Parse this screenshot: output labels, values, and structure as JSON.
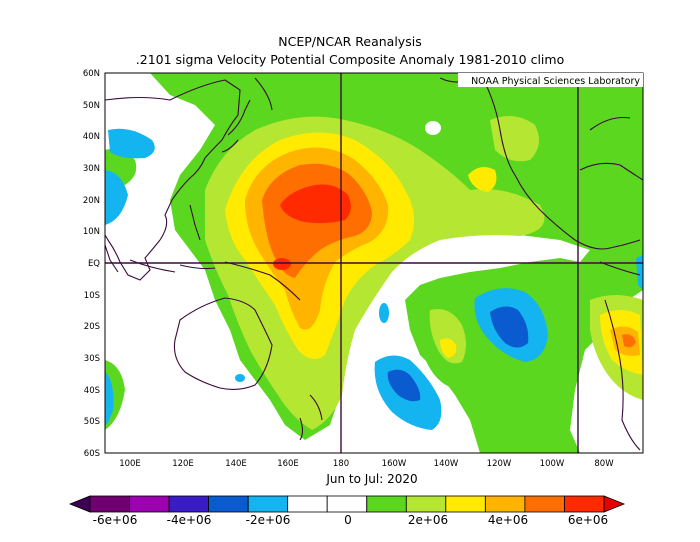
{
  "header": {
    "title": "NCEP/NCAR Reanalysis",
    "subtitle": ".2101 sigma Velocity Potential  Composite Anomaly 1981-2010 climo"
  },
  "credit": "NOAA Physical Sciences Laboratory",
  "period": "Jun to Jul: 2020",
  "lat_labels": [
    "60N",
    "50N",
    "40N",
    "30N",
    "20N",
    "10N",
    "EQ",
    "10S",
    "20S",
    "30S",
    "40S",
    "50S",
    "60S"
  ],
  "lon_labels": [
    "100E",
    "120E",
    "140E",
    "160E",
    "180",
    "160W",
    "140W",
    "120W",
    "100W",
    "80W"
  ],
  "colorbar": {
    "labels": [
      "-6e+06",
      "-4e+06",
      "-2e+06",
      "0",
      "2e+06",
      "4e+06",
      "6e+06"
    ],
    "colors": [
      "#6f0070",
      "#9c00b0",
      "#3a1cc4",
      "#0a5ad0",
      "#14b4f0",
      "#ffffff",
      "#ffffff",
      "#5ad71e",
      "#b4e632",
      "#ffea00",
      "#ffb400",
      "#ff6e00",
      "#ff2a00"
    ],
    "low_color": "#3c0055",
    "high_color": "#e60000"
  },
  "palette": {
    "green": "#5ad71e",
    "lime": "#b4e632",
    "yellow": "#ffea00",
    "orange": "#ffb400",
    "dkorange": "#ff6e00",
    "red": "#ff2a00",
    "cyan": "#14b4f0",
    "blue": "#0a5ad0",
    "coast": "#3c0a3c"
  }
}
